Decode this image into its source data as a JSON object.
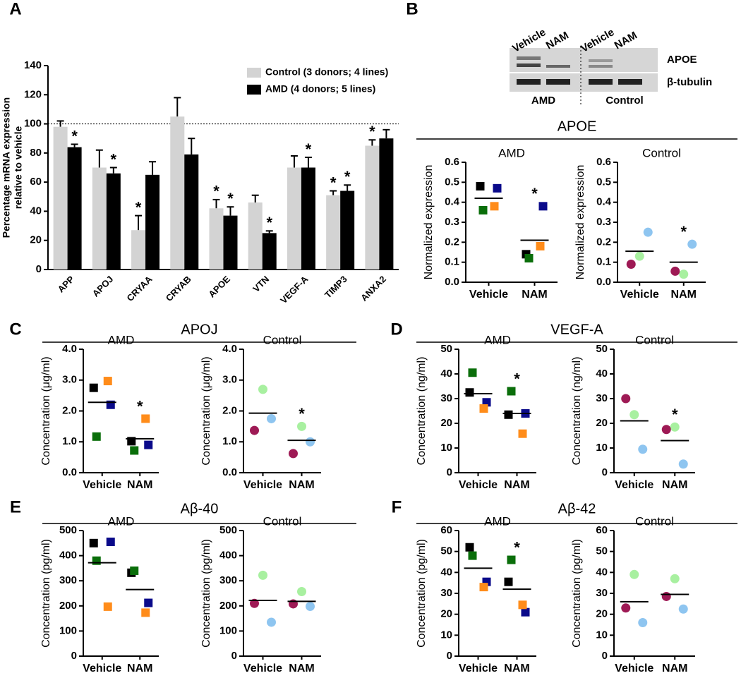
{
  "blot": {
    "panel": "B",
    "lanes": [
      "Vehicle",
      "NAM",
      "Vehicle",
      "NAM"
    ],
    "bands": [
      "APOE",
      "β-tubulin"
    ],
    "groups": [
      "AMD",
      "Control"
    ]
  },
  "chart_data": [
    {
      "type": "bar",
      "panel": "A",
      "y_label": [
        "Percentage mRNA expression",
        "relative to vehicle"
      ],
      "categories": [
        "APP",
        "APOJ",
        "CRYAA",
        "CRYAB",
        "APOE",
        "VTN",
        "VEGF-A",
        "TIMP3",
        "ANXA2"
      ],
      "series": [
        {
          "name": "Control (3 donors; 4 lines)",
          "color": "#d3d3d3",
          "values": [
            98,
            70,
            27,
            105,
            42,
            46,
            70,
            51,
            85
          ],
          "errors": [
            4,
            12,
            10,
            13,
            6,
            5,
            8,
            3,
            4
          ],
          "significance": [
            null,
            null,
            "*",
            null,
            "*",
            null,
            null,
            "*",
            "*"
          ]
        },
        {
          "name": "AMD (4 donors; 5 lines)",
          "color": "#000000",
          "values": [
            84,
            66,
            65,
            79,
            37,
            25,
            70,
            54,
            90
          ],
          "errors": [
            2,
            4,
            9,
            11,
            6,
            1.5,
            7,
            4,
            6
          ],
          "significance": [
            "*",
            "*",
            null,
            null,
            "*",
            "*",
            "*",
            "*",
            null
          ]
        }
      ],
      "reference_line": 100,
      "ylim": [
        0,
        140
      ],
      "yticks": [
        0,
        20,
        40,
        60,
        80,
        100,
        120,
        140
      ]
    },
    {
      "type": "dot",
      "section_title": "APOE",
      "title": "AMD",
      "y_label": "Normalized expression",
      "categories": [
        "Vehicle",
        "NAM"
      ],
      "series": [
        {
          "color": "#000000",
          "marker": "square",
          "values": [
            0.48,
            0.14
          ]
        },
        {
          "color": "#0a0a8a",
          "marker": "square",
          "values": [
            0.47,
            0.38
          ]
        },
        {
          "color": "#0a6e0a",
          "marker": "square",
          "values": [
            0.36,
            0.12
          ]
        },
        {
          "color": "#ff8c1a",
          "marker": "square",
          "values": [
            0.38,
            0.18
          ]
        }
      ],
      "means": [
        0.42,
        0.21
      ],
      "significance": [
        null,
        "*"
      ],
      "ylim": [
        0,
        0.6
      ],
      "yticks": [
        {
          "value": 0,
          "label": "0.0"
        },
        0.1,
        0.2,
        0.3,
        0.4,
        0.5,
        0.6
      ]
    },
    {
      "type": "dot",
      "title": "Control",
      "y_label": "Normalized expression",
      "categories": [
        "Vehicle",
        "NAM"
      ],
      "series": [
        {
          "color": "#8ec5f0",
          "marker": "circle",
          "values": [
            0.25,
            0.19
          ]
        },
        {
          "color": "#a8f0a0",
          "marker": "circle",
          "values": [
            0.13,
            0.04
          ]
        },
        {
          "color": "#9e1a55",
          "marker": "circle",
          "values": [
            0.09,
            0.055
          ]
        }
      ],
      "means": [
        0.155,
        0.1
      ],
      "significance": [
        null,
        "*"
      ],
      "ylim": [
        0,
        0.6
      ],
      "yticks": [
        {
          "value": 0,
          "label": "0.0"
        },
        0.1,
        0.2,
        0.3,
        0.4,
        0.5,
        0.6
      ]
    },
    {
      "type": "dot",
      "panel": "C",
      "section_title": "APOJ",
      "title": "AMD",
      "y_label": "Concentration (μg/ml)",
      "categories": [
        "Vehicle",
        "NAM"
      ],
      "series": [
        {
          "color": "#000000",
          "marker": "square",
          "values": [
            2.75,
            1.02
          ]
        },
        {
          "color": "#0a0a8a",
          "marker": "square",
          "values": [
            2.2,
            0.9
          ]
        },
        {
          "color": "#0a6e0a",
          "marker": "square",
          "values": [
            1.17,
            0.72
          ]
        },
        {
          "color": "#ff8c1a",
          "marker": "square",
          "values": [
            2.97,
            1.75
          ]
        }
      ],
      "means": [
        2.28,
        1.1
      ],
      "significance": [
        null,
        "*"
      ],
      "ylim": [
        0,
        4
      ],
      "yticks": [
        {
          "value": 0,
          "label": "0.0"
        },
        {
          "value": 1,
          "label": "1.0"
        },
        {
          "value": 2,
          "label": "2.0"
        },
        {
          "value": 3,
          "label": "3.0"
        },
        {
          "value": 4,
          "label": "4.0"
        }
      ]
    },
    {
      "type": "dot",
      "title": "Control",
      "y_label": "Concentration (μg/ml)",
      "categories": [
        "Vehicle",
        "NAM"
      ],
      "series": [
        {
          "color": "#8ec5f0",
          "marker": "circle",
          "values": [
            1.75,
            1.0
          ]
        },
        {
          "color": "#a8f0a0",
          "marker": "circle",
          "values": [
            2.7,
            1.5
          ]
        },
        {
          "color": "#9e1a55",
          "marker": "circle",
          "values": [
            1.37,
            0.62
          ]
        }
      ],
      "means": [
        1.93,
        1.05
      ],
      "significance": [
        null,
        "*"
      ],
      "ylim": [
        0,
        4
      ],
      "yticks": [
        {
          "value": 0,
          "label": "0.0"
        },
        {
          "value": 1,
          "label": "1.0"
        },
        {
          "value": 2,
          "label": "2.0"
        },
        {
          "value": 3,
          "label": "3.0"
        },
        {
          "value": 4,
          "label": "4.0"
        }
      ]
    },
    {
      "type": "dot",
      "panel": "D",
      "section_title": "VEGF-A",
      "title": "AMD",
      "y_label": "Concentration (ng/ml)",
      "categories": [
        "Vehicle",
        "NAM"
      ],
      "series": [
        {
          "color": "#000000",
          "marker": "square",
          "values": [
            32.5,
            23.5
          ]
        },
        {
          "color": "#0a0a8a",
          "marker": "square",
          "values": [
            28.5,
            24
          ]
        },
        {
          "color": "#0a6e0a",
          "marker": "square",
          "values": [
            40.5,
            33
          ]
        },
        {
          "color": "#ff8c1a",
          "marker": "square",
          "values": [
            26,
            15.8
          ]
        }
      ],
      "means": [
        32,
        24
      ],
      "significance": [
        null,
        "*"
      ],
      "ylim": [
        0,
        50
      ],
      "yticks": [
        0,
        10,
        20,
        30,
        40,
        50
      ]
    },
    {
      "type": "dot",
      "title": "Control",
      "y_label": "Concentration (ng/ml)",
      "categories": [
        "Vehicle",
        "NAM"
      ],
      "series": [
        {
          "color": "#8ec5f0",
          "marker": "circle",
          "values": [
            9.5,
            3.5
          ]
        },
        {
          "color": "#a8f0a0",
          "marker": "circle",
          "values": [
            23.5,
            18.5
          ]
        },
        {
          "color": "#9e1a55",
          "marker": "circle",
          "values": [
            30,
            17.5
          ]
        }
      ],
      "means": [
        21,
        13
      ],
      "significance": [
        null,
        "*"
      ],
      "ylim": [
        0,
        50
      ],
      "yticks": [
        0,
        10,
        20,
        30,
        40,
        50
      ]
    },
    {
      "type": "dot",
      "panel": "E",
      "section_title": "Aβ-40",
      "title": "AMD",
      "y_label": "Concentration (pg/ml)",
      "categories": [
        "Vehicle",
        "NAM"
      ],
      "series": [
        {
          "color": "#000000",
          "marker": "square",
          "values": [
            450,
            332
          ]
        },
        {
          "color": "#0a0a8a",
          "marker": "square",
          "values": [
            455,
            212
          ]
        },
        {
          "color": "#0a6e0a",
          "marker": "square",
          "values": [
            380,
            340
          ]
        },
        {
          "color": "#ff8c1a",
          "marker": "square",
          "values": [
            197,
            173
          ]
        }
      ],
      "means": [
        372,
        265
      ],
      "ylim": [
        0,
        500
      ],
      "yticks": [
        0,
        100,
        200,
        300,
        400,
        500
      ]
    },
    {
      "type": "dot",
      "title": "Control",
      "y_label": "Concentration (pg/ml)",
      "categories": [
        "Vehicle",
        "NAM"
      ],
      "series": [
        {
          "color": "#8ec5f0",
          "marker": "circle",
          "values": [
            135,
            198
          ]
        },
        {
          "color": "#a8f0a0",
          "marker": "circle",
          "values": [
            322,
            257
          ]
        },
        {
          "color": "#9e1a55",
          "marker": "circle",
          "values": [
            210,
            208
          ]
        }
      ],
      "means": [
        222,
        218
      ],
      "ylim": [
        0,
        500
      ],
      "yticks": [
        0,
        100,
        200,
        300,
        400,
        500
      ]
    },
    {
      "type": "dot",
      "panel": "F",
      "section_title": "Aβ-42",
      "title": "AMD",
      "y_label": "Concentration (pg/ml)",
      "categories": [
        "Vehicle",
        "NAM"
      ],
      "series": [
        {
          "color": "#000000",
          "marker": "square",
          "values": [
            52,
            35.5
          ]
        },
        {
          "color": "#0a0a8a",
          "marker": "square",
          "values": [
            35.5,
            21
          ]
        },
        {
          "color": "#0a6e0a",
          "marker": "square",
          "values": [
            48,
            46
          ]
        },
        {
          "color": "#ff8c1a",
          "marker": "square",
          "values": [
            33,
            24.5
          ]
        }
      ],
      "means": [
        42,
        32
      ],
      "significance": [
        null,
        "*"
      ],
      "ylim": [
        0,
        60
      ],
      "yticks": [
        0,
        10,
        20,
        30,
        40,
        50,
        60
      ]
    },
    {
      "type": "dot",
      "title": "Control",
      "y_label": "Concentration (pg/ml)",
      "categories": [
        "Vehicle",
        "NAM"
      ],
      "series": [
        {
          "color": "#8ec5f0",
          "marker": "circle",
          "values": [
            16,
            22.5
          ]
        },
        {
          "color": "#a8f0a0",
          "marker": "circle",
          "values": [
            39,
            37
          ]
        },
        {
          "color": "#9e1a55",
          "marker": "circle",
          "values": [
            23,
            28.5
          ]
        }
      ],
      "means": [
        26,
        29.5
      ],
      "ylim": [
        0,
        60
      ],
      "yticks": [
        0,
        10,
        20,
        30,
        40,
        50,
        60
      ]
    }
  ]
}
